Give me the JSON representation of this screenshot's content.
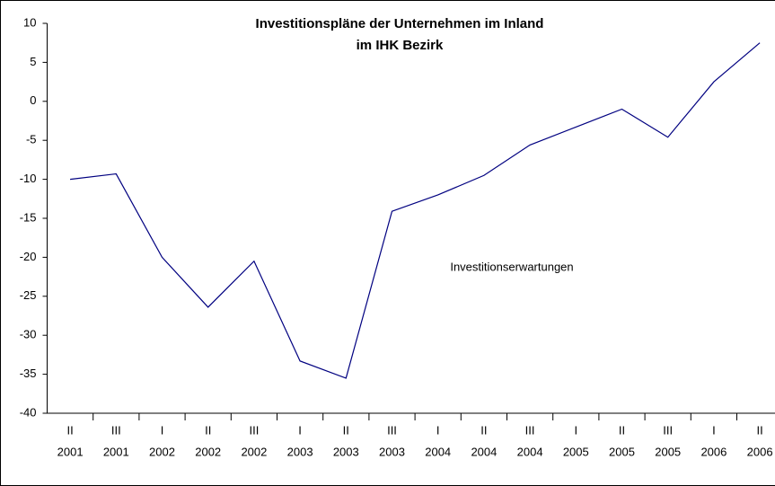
{
  "chart_data": {
    "type": "line",
    "title": "Investitionspläne der Unternehmen im Inland",
    "subtitle": "im IHK Bezirk",
    "annotation": "Investitionserwartungen",
    "categories": [
      [
        "II",
        "2001"
      ],
      [
        "III",
        "2001"
      ],
      [
        "I",
        "2002"
      ],
      [
        "II",
        "2002"
      ],
      [
        "III",
        "2002"
      ],
      [
        "I",
        "2003"
      ],
      [
        "II",
        "2003"
      ],
      [
        "III",
        "2003"
      ],
      [
        "I",
        "2004"
      ],
      [
        "II",
        "2004"
      ],
      [
        "III",
        "2004"
      ],
      [
        "I",
        "2005"
      ],
      [
        "II",
        "2005"
      ],
      [
        "III",
        "2005"
      ],
      [
        "I",
        "2006"
      ],
      [
        "II",
        "2006"
      ]
    ],
    "series": [
      {
        "name": "Investitionserwartungen",
        "color": "#000080",
        "values": [
          -10,
          -9.3,
          -20,
          -26.4,
          -20.5,
          -33.3,
          -35.5,
          -14.1,
          -12,
          -9.5,
          -5.6,
          -3.3,
          -1,
          -4.6,
          2.5,
          7.5
        ]
      }
    ],
    "ylim": [
      -40,
      10
    ],
    "yticks": [
      -40,
      -35,
      -30,
      -25,
      -20,
      -15,
      -10,
      -5,
      0,
      5,
      10
    ],
    "grid": false
  }
}
